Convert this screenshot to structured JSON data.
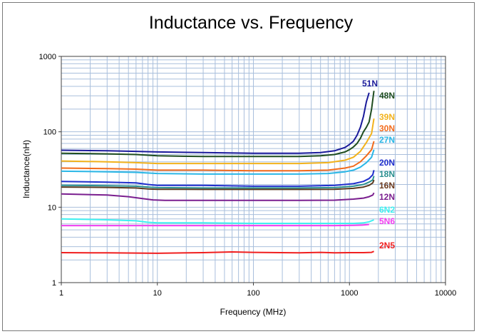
{
  "chart_data": {
    "type": "line",
    "title": "Inductance vs. Frequency",
    "xlabel": "Frequency (MHz)",
    "ylabel": "Inductance(nH)",
    "x_scale": "log",
    "y_scale": "log",
    "xlim": [
      1,
      10000
    ],
    "ylim": [
      1,
      1000
    ],
    "x_ticks": [
      "1",
      "10",
      "100",
      "1000",
      "10000"
    ],
    "y_ticks": [
      "1",
      "10",
      "100",
      "1000"
    ],
    "grid": true,
    "series": [
      {
        "name": "51N",
        "color": "#1a1a9a",
        "label_color": "#1a1a9a",
        "x": [
          1,
          3,
          6,
          10,
          30,
          100,
          300,
          500,
          700,
          900,
          1000,
          1100,
          1200,
          1300,
          1400,
          1500,
          1600
        ],
        "y": [
          57,
          56,
          55,
          54,
          53,
          52,
          52,
          53,
          56,
          62,
          68,
          75,
          90,
          115,
          160,
          250,
          330
        ]
      },
      {
        "name": "48N",
        "color": "#1f4d1f",
        "label_color": "#1f4d1f",
        "x": [
          1,
          3,
          6,
          10,
          30,
          100,
          300,
          500,
          700,
          900,
          1000,
          1100,
          1200,
          1300,
          1400,
          1500,
          1600,
          1700,
          1800
        ],
        "y": [
          52,
          51,
          50,
          48,
          47,
          47,
          47,
          48,
          50,
          54,
          58,
          63,
          70,
          82,
          100,
          115,
          135,
          200,
          350
        ]
      },
      {
        "name": "39N",
        "color": "#f2b21c",
        "label_color": "#f2b21c",
        "x": [
          1,
          3,
          6,
          10,
          30,
          100,
          300,
          600,
          900,
          1100,
          1300,
          1500,
          1700,
          1800
        ],
        "y": [
          41,
          40,
          39,
          38,
          38,
          38,
          38,
          39,
          42,
          46,
          55,
          72,
          95,
          150
        ]
      },
      {
        "name": "30N",
        "color": "#f26b1c",
        "label_color": "#f26b1c",
        "x": [
          1,
          3,
          6,
          10,
          30,
          100,
          300,
          600,
          900,
          1100,
          1300,
          1500,
          1700,
          1800
        ],
        "y": [
          33,
          32.5,
          32,
          31,
          31,
          30.5,
          30.5,
          31,
          33,
          35,
          40,
          48,
          58,
          75
        ]
      },
      {
        "name": "27N",
        "color": "#2ab7e6",
        "label_color": "#2ab7e6",
        "x": [
          1,
          3,
          6,
          10,
          30,
          100,
          300,
          600,
          900,
          1100,
          1300,
          1500,
          1700,
          1800
        ],
        "y": [
          30,
          29.5,
          29,
          28,
          27.5,
          27.5,
          27.5,
          28,
          29.5,
          31,
          34,
          39,
          46,
          58
        ]
      },
      {
        "name": "20N",
        "color": "#1f2ecc",
        "label_color": "#1f2ecc",
        "x": [
          1,
          3,
          6,
          8,
          10,
          30,
          100,
          300,
          700,
          1100,
          1400,
          1600,
          1750,
          1800
        ],
        "y": [
          22,
          21.5,
          21,
          20,
          19.5,
          19.5,
          19,
          19,
          19.5,
          20.5,
          22,
          24,
          27,
          31
        ]
      },
      {
        "name": "18N",
        "color": "#2a8f8f",
        "label_color": "#2a8f8f",
        "x": [
          1,
          3,
          6,
          8,
          10,
          30,
          100,
          300,
          700,
          1100,
          1400,
          1600,
          1750,
          1800
        ],
        "y": [
          19.5,
          19.3,
          19,
          18.5,
          18.2,
          18,
          18,
          18,
          18.2,
          19,
          20,
          21.5,
          23,
          26
        ]
      },
      {
        "name": "16N",
        "color": "#5a3a1f",
        "label_color": "#6b3a1f",
        "x": [
          1,
          3,
          6,
          8,
          10,
          30,
          100,
          300,
          700,
          1100,
          1400,
          1600,
          1750,
          1800
        ],
        "y": [
          18.5,
          18.3,
          18,
          17.5,
          17.3,
          17.2,
          17.2,
          17.2,
          17.3,
          17.8,
          18.5,
          19.5,
          21,
          23
        ]
      },
      {
        "name": "12N",
        "color": "#7a1f8f",
        "label_color": "#7a1f8f",
        "x": [
          1,
          3,
          5,
          7,
          9,
          12,
          30,
          100,
          300,
          700,
          1100,
          1400,
          1600,
          1750,
          1800
        ],
        "y": [
          15,
          14.5,
          13.8,
          13,
          12.5,
          12.3,
          12.3,
          12.3,
          12.3,
          12.4,
          12.8,
          13.2,
          13.8,
          14.5,
          15.5
        ]
      },
      {
        "name": "6N2",
        "color": "#3ff0f0",
        "label_color": "#3ff0f0",
        "x": [
          1,
          3,
          6,
          8,
          10,
          30,
          100,
          300,
          700,
          1100,
          1400,
          1600,
          1800
        ],
        "y": [
          7,
          6.8,
          6.6,
          6.3,
          6.2,
          6.2,
          6.1,
          6.1,
          6.1,
          6.1,
          6.2,
          6.4,
          6.8
        ]
      },
      {
        "name": "5N6",
        "color": "#f03ff0",
        "label_color": "#f03ff0",
        "x": [
          1,
          3,
          10,
          30,
          100,
          300,
          700,
          1100,
          1400,
          1600
        ],
        "y": [
          5.7,
          5.7,
          5.7,
          5.7,
          5.7,
          5.7,
          5.7,
          5.75,
          5.8,
          5.9
        ]
      },
      {
        "name": "2N5",
        "color": "#f01f1f",
        "label_color": "#f01f1f",
        "x": [
          1,
          3,
          10,
          30,
          60,
          100,
          300,
          500,
          700,
          1000,
          1400,
          1700,
          1800
        ],
        "y": [
          2.5,
          2.48,
          2.45,
          2.5,
          2.55,
          2.52,
          2.48,
          2.52,
          2.48,
          2.5,
          2.5,
          2.52,
          2.6
        ]
      }
    ]
  }
}
